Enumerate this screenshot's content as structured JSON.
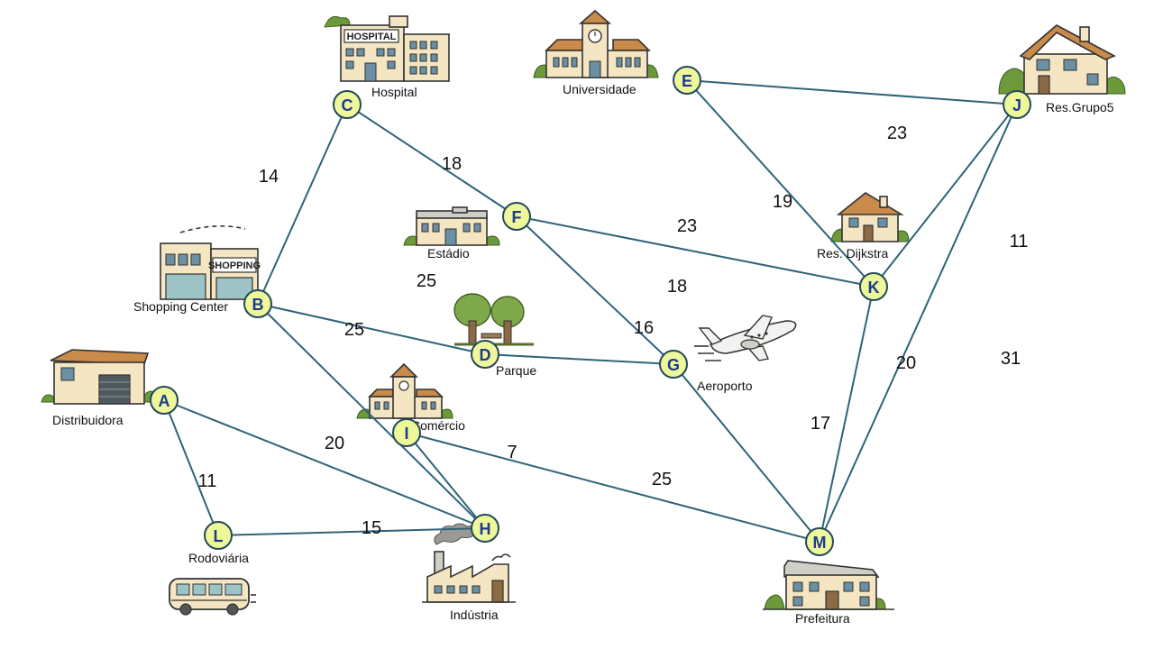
{
  "nodes": [
    {
      "id": "A",
      "place": "Distribuidora"
    },
    {
      "id": "B",
      "place": "Shopping Center"
    },
    {
      "id": "C",
      "place": "Hospital"
    },
    {
      "id": "D",
      "place": "Parque"
    },
    {
      "id": "E",
      "place": "Universidade"
    },
    {
      "id": "F",
      "place": "Estádio"
    },
    {
      "id": "G",
      "place": "Aeroporto"
    },
    {
      "id": "H",
      "place": "Indústria"
    },
    {
      "id": "I",
      "place": "Comércio"
    },
    {
      "id": "J",
      "place": "Res.Grupo5"
    },
    {
      "id": "K",
      "place": "Res. Dijkstra"
    },
    {
      "id": "L",
      "place": "Rodoviária"
    },
    {
      "id": "M",
      "place": "Prefeitura"
    }
  ],
  "edges": [
    {
      "from": "A",
      "to": "L",
      "weight": "11"
    },
    {
      "from": "A",
      "to": "H",
      "weight": "20"
    },
    {
      "from": "L",
      "to": "H",
      "weight": "15"
    },
    {
      "from": "B",
      "to": "C",
      "weight": "14"
    },
    {
      "from": "B",
      "to": "D",
      "weight": "25"
    },
    {
      "from": "B",
      "to": "H",
      "weight": "25"
    },
    {
      "from": "C",
      "to": "F",
      "weight": "18"
    },
    {
      "from": "F",
      "to": "G",
      "weight": "16"
    },
    {
      "from": "F",
      "to": "K",
      "weight": "23"
    },
    {
      "from": "D",
      "to": "G",
      "weight": "18"
    },
    {
      "from": "I",
      "to": "M",
      "weight": "25"
    },
    {
      "from": "G",
      "to": "M",
      "weight": "17"
    },
    {
      "from": "E",
      "to": "K",
      "weight": "19"
    },
    {
      "from": "E",
      "to": "J",
      "weight": "23"
    },
    {
      "from": "J",
      "to": "K",
      "weight": "11"
    },
    {
      "from": "J",
      "to": "M",
      "weight": "31"
    },
    {
      "from": "K",
      "to": "M",
      "weight": "20"
    },
    {
      "from": "I",
      "to": "H",
      "weight": "7"
    }
  ],
  "icons": {
    "A": "warehouse-icon",
    "B": "shopping-icon",
    "C": "hospital-icon",
    "D": "park-icon",
    "E": "university-icon",
    "F": "stadium-icon",
    "G": "airplane-icon",
    "H": "factory-icon",
    "I": "commerce-icon",
    "J": "house-icon",
    "K": "house-small-icon",
    "L": "bus-icon",
    "M": "city-hall-icon"
  },
  "icon_texts": {
    "hospital_sign": "HOSPITAL",
    "shopping_sign": "SHOPPING"
  },
  "colors": {
    "edge": "#2e6478",
    "node_fill": "#eef79a",
    "node_stroke": "#25485a",
    "node_letter": "#1f3a8a"
  }
}
